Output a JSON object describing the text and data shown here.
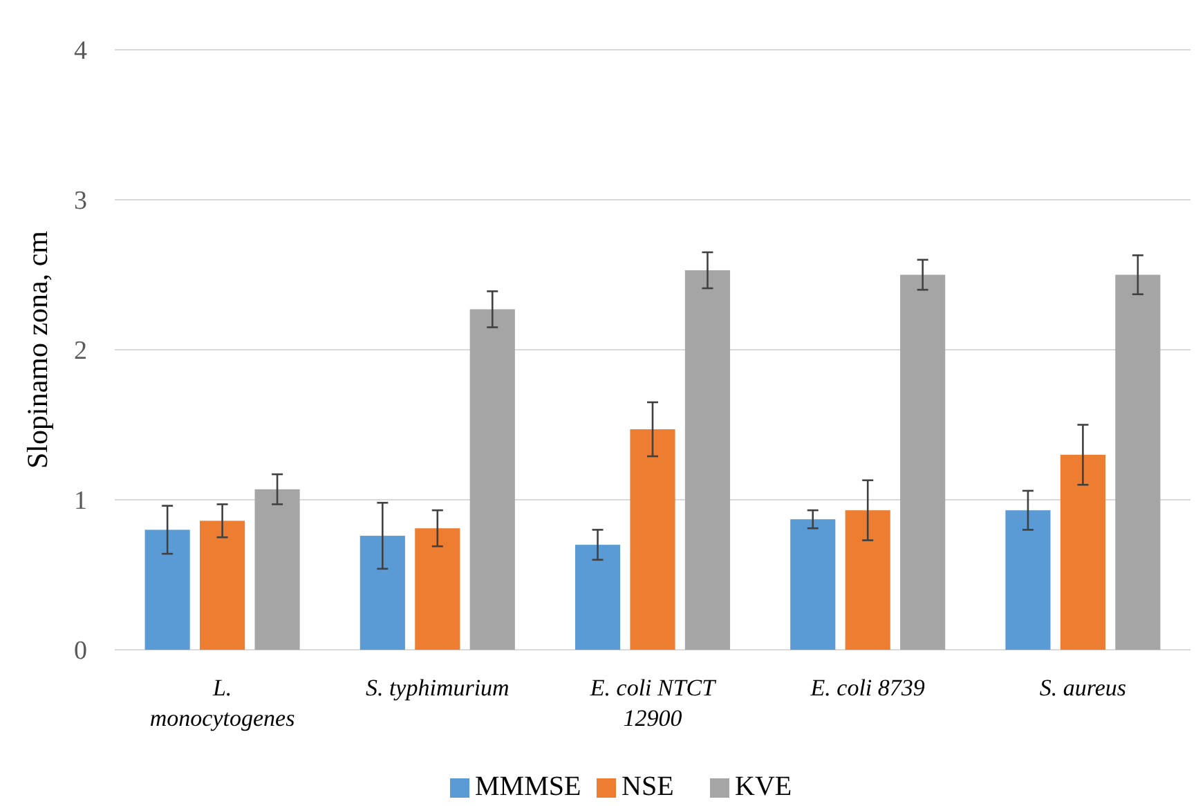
{
  "chart_data": {
    "type": "bar",
    "ylabel": "Slopinamo zona, cm",
    "categories": [
      "L. monocytogenes",
      "S. typhimurium",
      "E. coli NTCT 12900",
      "E. coli 8739",
      "S. aureus"
    ],
    "series": [
      {
        "name": "MMMSE",
        "color": "#5b9bd5",
        "values": [
          0.8,
          0.76,
          0.7,
          0.87,
          0.93
        ],
        "errors": [
          0.16,
          0.22,
          0.1,
          0.06,
          0.13
        ]
      },
      {
        "name": "NSE",
        "color": "#ed7d31",
        "values": [
          0.86,
          0.81,
          1.47,
          0.93,
          1.3
        ],
        "errors": [
          0.11,
          0.12,
          0.18,
          0.2,
          0.2
        ]
      },
      {
        "name": "KVE",
        "color": "#a5a5a5",
        "values": [
          1.07,
          2.27,
          2.53,
          2.5,
          2.5
        ],
        "errors": [
          0.1,
          0.12,
          0.12,
          0.1,
          0.13
        ]
      }
    ],
    "ylim": [
      0,
      4
    ],
    "yticks": [
      0,
      1,
      2,
      3,
      4
    ],
    "grid": "y",
    "legend": "bottom"
  }
}
